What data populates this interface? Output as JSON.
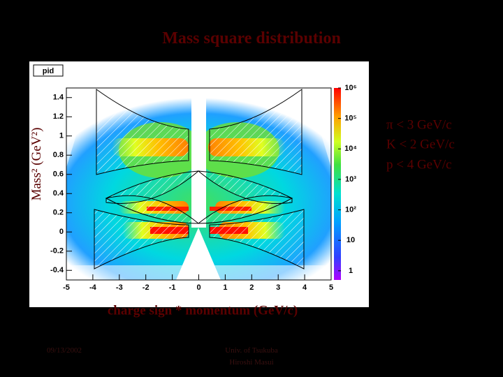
{
  "slide": {
    "title": "Mass square distribution",
    "annotations": [
      "π < 3 GeV/c",
      "K < 2 GeV/c",
      "p < 4 GeV/c"
    ],
    "footer": {
      "date": "09/13/2002",
      "affiliation": "Univ. of Tsukuba",
      "author": "Hiroshi Masui"
    }
  },
  "chart_data": {
    "type": "heatmap",
    "title": "pid",
    "x_label": "charge sign * momentum (GeV/c)",
    "y_label": "Mass² (GeV²)",
    "xlim": [
      -5,
      5
    ],
    "ylim": [
      -0.5,
      1.5
    ],
    "xticks": [
      -5,
      -4,
      -3,
      -2,
      -1,
      0,
      1,
      2,
      3,
      4,
      5
    ],
    "yticks": [
      -0.4,
      -0.2,
      0,
      0.2,
      0.4,
      0.6,
      0.8,
      1,
      1.2,
      1.4
    ],
    "zscale": "log",
    "zlim": [
      0.5,
      1000000
    ],
    "zticks": [
      1,
      10,
      {
        "value": 100,
        "label": "10²"
      },
      {
        "value": 1000,
        "label": "10³"
      },
      {
        "value": 10000,
        "label": "10⁴"
      },
      {
        "value": 100000,
        "label": "10⁵"
      },
      {
        "value": 1000000,
        "label": "10⁶"
      }
    ]
  }
}
